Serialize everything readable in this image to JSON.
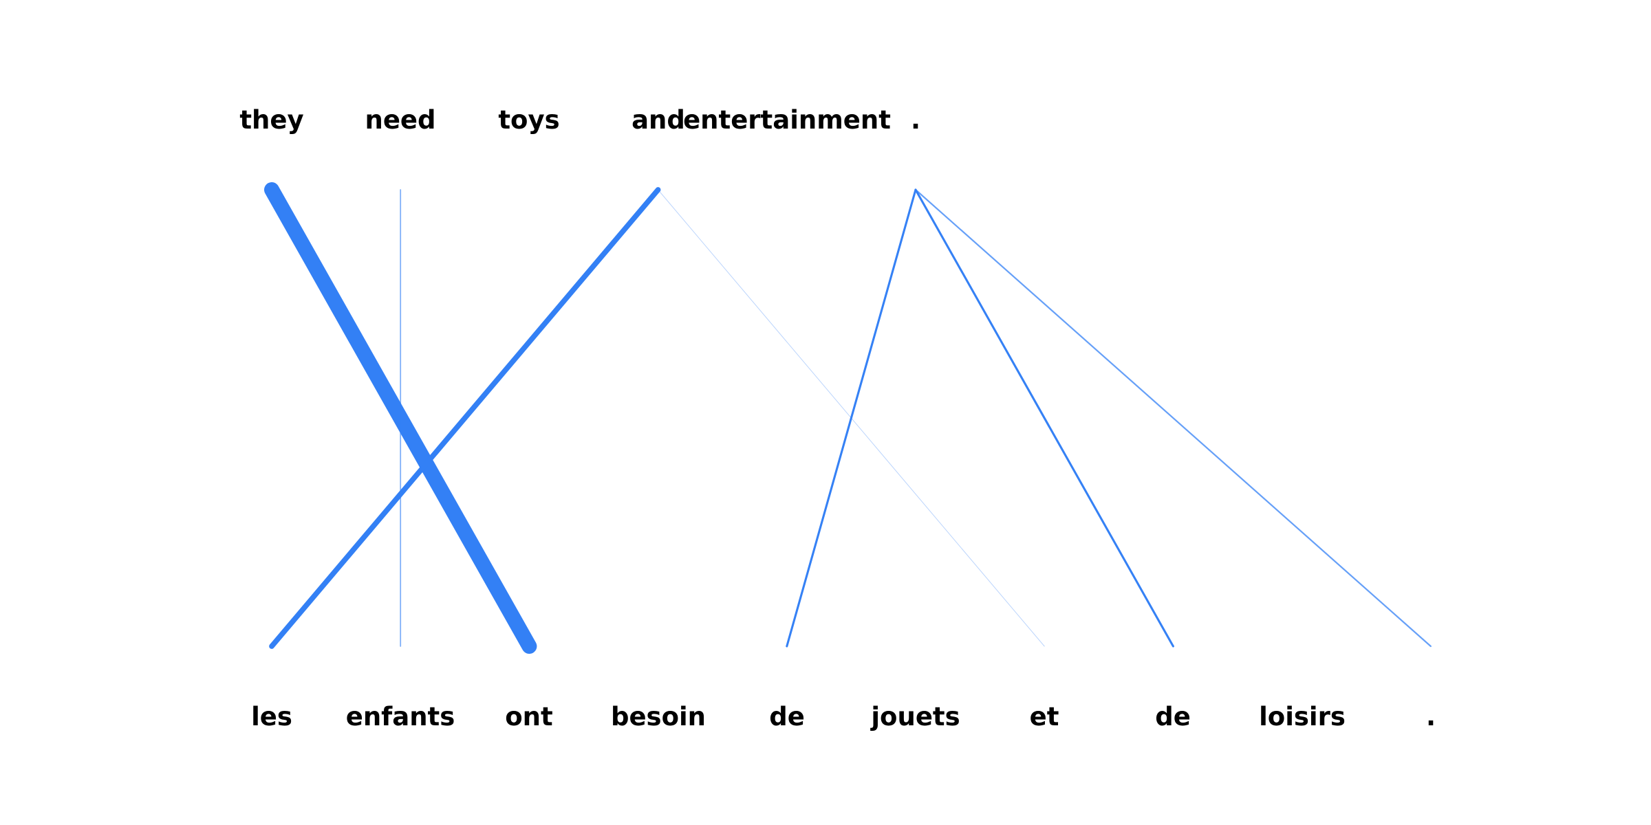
{
  "diagram": {
    "source_tokens": [
      "they",
      "need",
      "toys",
      "and",
      "entertainment",
      "."
    ],
    "target_tokens": [
      "les",
      "enfants",
      "ont",
      "besoin",
      "de",
      "jouets",
      "et",
      "de",
      "loisirs",
      "."
    ],
    "link_color": "#3380f5",
    "alignments": [
      {
        "source": 0,
        "target": 2,
        "weight": 1.0
      },
      {
        "source": 1,
        "target": 1,
        "weight": 0.08
      },
      {
        "source": 3,
        "target": 0,
        "weight": 0.35
      },
      {
        "source": 3,
        "target": 6,
        "weight": 0.03
      },
      {
        "source": 5,
        "target": 4,
        "weight": 0.14
      },
      {
        "source": 5,
        "target": 7,
        "weight": 0.14
      },
      {
        "source": 5,
        "target": 9,
        "weight": 0.1
      }
    ]
  }
}
